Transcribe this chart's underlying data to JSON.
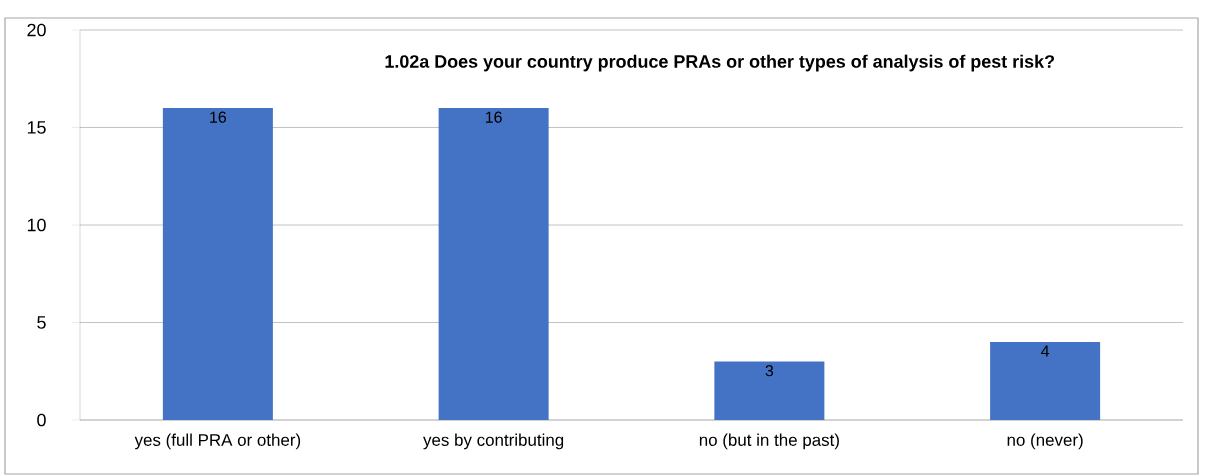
{
  "chart_data": {
    "type": "bar",
    "title": "1.02a Does your country produce PRAs or other types of analysis of pest risk?",
    "categories": [
      "yes (full PRA or other)",
      "yes by contributing",
      "no (but in the past)",
      "no (never)"
    ],
    "values": [
      16,
      16,
      3,
      4
    ],
    "color": "#4472c4",
    "ylim": [
      0,
      20
    ],
    "yticks": [
      0,
      5,
      10,
      15,
      20
    ],
    "grid": "y",
    "data_labels": true
  }
}
